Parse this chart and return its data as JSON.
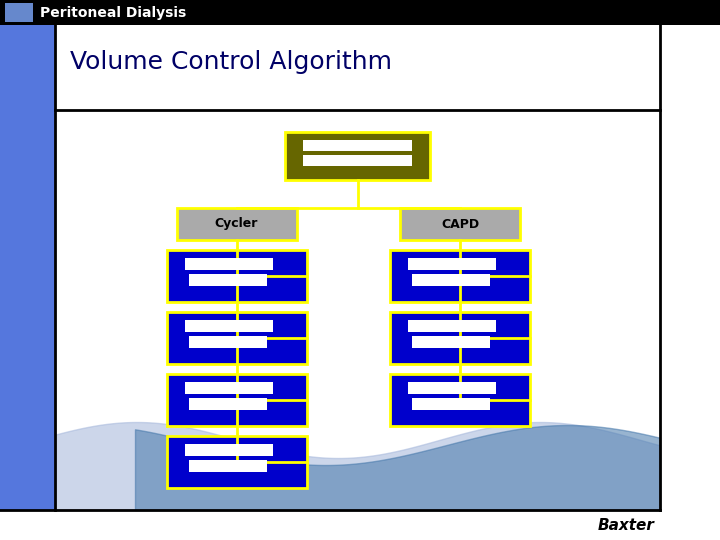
{
  "title_bar_bg": "#000000",
  "title_bar_text": "Peritoneal Dialysis",
  "title_bar_text_color": "#ffffff",
  "title_bar_accent_color": "#6688cc",
  "slide_title": "Volume Control Algorithm",
  "slide_title_color": "#000066",
  "slide_bg": "#ffffff",
  "left_bar_color": "#5577dd",
  "baxter_text": "Baxter",
  "baxter_color": "#000000",
  "yellow_border": "#ffff00",
  "olive_box_bg": "#666600",
  "gray_box_bg": "#aaaaaa",
  "blue_box_bg": "#0000cc",
  "white_rect": "#ffffff",
  "cycler_label": "Cycler",
  "capd_label": "CAPD"
}
